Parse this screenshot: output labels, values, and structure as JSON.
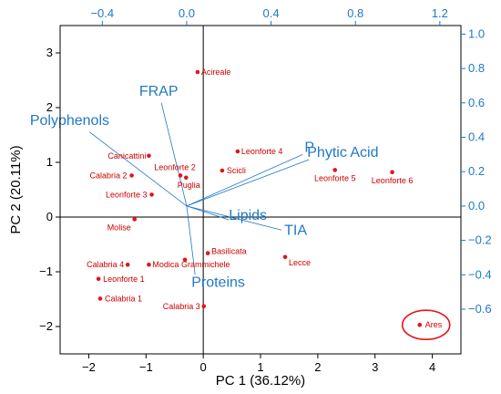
{
  "chart_data": {
    "type": "scatter",
    "subtype": "PCA biplot",
    "xlabel": "PC 1 (36.12%)",
    "ylabel": "PC 2 (20.11%)",
    "xlim": [
      -2.5,
      4.5
    ],
    "ylim": [
      -2.5,
      3.5
    ],
    "x_ticks": [
      "−2",
      "−1",
      "0",
      "1",
      "2",
      "3",
      "4"
    ],
    "y_ticks": [
      "−2",
      "−1",
      "0",
      "1",
      "2",
      "3"
    ],
    "loadings_xlim": [
      -0.6,
      1.3
    ],
    "loadings_ylim": [
      -0.86,
      1.05
    ],
    "loadings_x_ticks": [
      "−0.4",
      "0.0",
      "0.4",
      "0.8",
      "1.2"
    ],
    "loadings_y_ticks": [
      "−0.6",
      "−0.4",
      "−0.2",
      "0.0",
      "0.2",
      "0.4",
      "0.6",
      "0.8",
      "1.0"
    ],
    "grid": false,
    "colors": {
      "scores": "#e3141b",
      "loadings": "#1f78c8",
      "axes": "#000000"
    },
    "scores": [
      {
        "label": "Acireale",
        "x": -0.1,
        "y": 2.65
      },
      {
        "label": "Leonforte 4",
        "x": 0.6,
        "y": 1.2
      },
      {
        "label": "Scicli",
        "x": 0.33,
        "y": 0.85
      },
      {
        "label": "Canicattini",
        "x": -0.95,
        "y": 1.12
      },
      {
        "label": "Leonforte 2",
        "x": -0.4,
        "y": 0.76
      },
      {
        "label": "Puglia",
        "x": -0.3,
        "y": 0.72
      },
      {
        "label": "Calabria 2",
        "x": -1.25,
        "y": 0.76
      },
      {
        "label": "Leonforte 3",
        "x": -0.9,
        "y": 0.41
      },
      {
        "label": "Leonforte 5",
        "x": 2.3,
        "y": 0.86
      },
      {
        "label": "Leonforte 6",
        "x": 3.3,
        "y": 0.82
      },
      {
        "label": "Molise",
        "x": -1.2,
        "y": -0.04
      },
      {
        "label": "Basilicata",
        "x": 0.08,
        "y": -0.66
      },
      {
        "label": "Lecce",
        "x": 1.43,
        "y": -0.73
      },
      {
        "label": "Grammichele",
        "x": -0.32,
        "y": -0.78
      },
      {
        "label": "Modica",
        "x": -0.95,
        "y": -0.87
      },
      {
        "label": "Calabria 4",
        "x": -1.32,
        "y": -0.87
      },
      {
        "label": "Leonforte 1",
        "x": -1.83,
        "y": -1.13
      },
      {
        "label": "Calabria 1",
        "x": -1.8,
        "y": -1.49
      },
      {
        "label": "Calabria 3",
        "x": 0.01,
        "y": -1.63
      },
      {
        "label": "Ares",
        "x": 3.78,
        "y": -1.97
      }
    ],
    "highlighted_score": "Ares",
    "loadings": [
      {
        "label": "FRAP",
        "x": -0.12,
        "y": 0.6
      },
      {
        "label": "Polyphenols",
        "x": -0.46,
        "y": 0.43
      },
      {
        "label": "P",
        "x": 0.55,
        "y": 0.3
      },
      {
        "label": "Phytic Acid",
        "x": 0.58,
        "y": 0.27
      },
      {
        "label": "Lipids",
        "x": 0.2,
        "y": -0.08
      },
      {
        "label": "TIA",
        "x": 0.45,
        "y": -0.14
      },
      {
        "label": "Proteins",
        "x": 0.04,
        "y": -0.4
      }
    ]
  }
}
